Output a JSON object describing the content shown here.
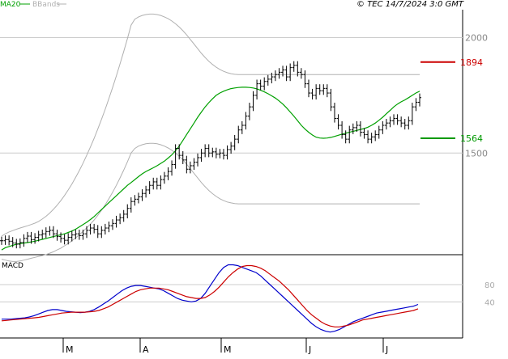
{
  "header": {
    "legend": [
      {
        "label": "MA20",
        "color": "#00a000"
      },
      {
        "label": "BBands",
        "color": "#b0b0b0"
      }
    ],
    "copyright": "© TEC 14/7/2024 3:0 GMT"
  },
  "colors": {
    "price_bars": "#000000",
    "ma20": "#00a000",
    "bbands": "#b0b0b0",
    "resistance": "#cc0000",
    "support": "#009900",
    "macd": "#0000cc",
    "signal": "#cc0000",
    "grid": "#cccccc"
  },
  "chart_data": [
    {
      "type": "bar",
      "subtype": "ohlc-price",
      "y_ticks": [
        {
          "value": 2000,
          "label": "2000"
        },
        {
          "value": 1500,
          "label": "1500"
        }
      ],
      "ylim": [
        1070,
        2100
      ],
      "months": [
        "M",
        "A",
        "M",
        "J",
        "J"
      ],
      "levels": [
        {
          "name": "resistance",
          "value": 1894,
          "label": "1894",
          "color": "#cc0000"
        },
        {
          "name": "support",
          "value": 1564,
          "label": "1564",
          "color": "#009900"
        }
      ],
      "series": [
        {
          "name": "price",
          "values": [
            1120,
            1125,
            1118,
            1110,
            1105,
            1112,
            1130,
            1140,
            1125,
            1135,
            1145,
            1150,
            1160,
            1165,
            1150,
            1138,
            1130,
            1122,
            1135,
            1145,
            1150,
            1142,
            1150,
            1165,
            1175,
            1170,
            1150,
            1165,
            1175,
            1185,
            1195,
            1210,
            1220,
            1235,
            1260,
            1290,
            1300,
            1310,
            1325,
            1340,
            1360,
            1375,
            1360,
            1385,
            1400,
            1420,
            1450,
            1520,
            1490,
            1470,
            1430,
            1445,
            1460,
            1480,
            1500,
            1520,
            1500,
            1505,
            1495,
            1500,
            1490,
            1515,
            1530,
            1560,
            1600,
            1620,
            1660,
            1700,
            1750,
            1800,
            1790,
            1810,
            1820,
            1830,
            1840,
            1850,
            1860,
            1830,
            1870,
            1880,
            1850,
            1840,
            1800,
            1760,
            1750,
            1780,
            1770,
            1780,
            1760,
            1700,
            1650,
            1620,
            1580,
            1560,
            1600,
            1610,
            1620,
            1590,
            1580,
            1560,
            1570,
            1580,
            1600,
            1620,
            1630,
            1640,
            1650,
            1640,
            1630,
            1620,
            1640,
            1700,
            1720,
            1740
          ]
        },
        {
          "name": "ma20",
          "values": [
            1080,
            1090,
            1095,
            1100,
            1105,
            1108,
            1110,
            1112,
            1115,
            1118,
            1122,
            1126,
            1130,
            1134,
            1138,
            1142,
            1146,
            1150,
            1156,
            1162,
            1170,
            1180,
            1190,
            1200,
            1212,
            1225,
            1240,
            1255,
            1270,
            1285,
            1300,
            1315,
            1330,
            1345,
            1360,
            1372,
            1385,
            1398,
            1410,
            1420,
            1428,
            1436,
            1445,
            1455,
            1465,
            1478,
            1492,
            1510,
            1530,
            1555,
            1580,
            1605,
            1630,
            1655,
            1678,
            1700,
            1718,
            1735,
            1750,
            1760,
            1768,
            1774,
            1779,
            1782,
            1784,
            1785,
            1785,
            1784,
            1782,
            1778,
            1772,
            1765,
            1757,
            1748,
            1738,
            1726,
            1712,
            1696,
            1678,
            1660,
            1640,
            1620,
            1604,
            1590,
            1578,
            1569,
            1565,
            1564,
            1565,
            1568,
            1572,
            1577,
            1582,
            1586,
            1590,
            1594,
            1598,
            1602,
            1606,
            1612,
            1620,
            1630,
            1642,
            1655,
            1670,
            1685,
            1700,
            1712,
            1722,
            1730,
            1740,
            1750,
            1760,
            1768
          ]
        },
        {
          "name": "bb_upper",
          "values": [
            1140,
            1150,
            1158,
            1164,
            1170,
            1175,
            1180,
            1185,
            1190,
            1196,
            1204,
            1214,
            1226,
            1240,
            1256,
            1274,
            1294,
            1316,
            1340,
            1366,
            1394,
            1424,
            1456,
            1490,
            1526,
            1564,
            1604,
            1646,
            1690,
            1736,
            1784,
            1834,
            1886,
            1940,
            1996,
            2054,
            2080,
            2090,
            2096,
            2100,
            2102,
            2102,
            2100,
            2096,
            2090,
            2082,
            2072,
            2060,
            2046,
            2030,
            2012,
            1992,
            1972,
            1952,
            1932,
            1914,
            1898,
            1884,
            1872,
            1862,
            1854,
            1848,
            1844,
            1841,
            1840,
            1840,
            1840,
            1840,
            1840,
            1840,
            1840,
            1840,
            1840,
            1840,
            1840,
            1840,
            1840,
            1840,
            1840,
            1840,
            1840,
            1840,
            1840,
            1840,
            1840,
            1840,
            1840,
            1840,
            1840,
            1840,
            1840,
            1840,
            1840,
            1840,
            1840,
            1840,
            1840,
            1840,
            1840,
            1840,
            1840,
            1840,
            1840,
            1840,
            1840,
            1840,
            1840,
            1840,
            1840,
            1840,
            1840,
            1840,
            1840,
            1840
          ]
        },
        {
          "name": "bb_lower",
          "values": [
            1040,
            1036,
            1032,
            1030,
            1030,
            1032,
            1036,
            1040,
            1044,
            1048,
            1052,
            1056,
            1060,
            1066,
            1072,
            1080,
            1088,
            1098,
            1108,
            1120,
            1132,
            1146,
            1160,
            1176,
            1192,
            1210,
            1230,
            1252,
            1276,
            1302,
            1330,
            1360,
            1392,
            1426,
            1462,
            1500,
            1520,
            1530,
            1536,
            1540,
            1542,
            1542,
            1540,
            1536,
            1530,
            1522,
            1512,
            1500,
            1486,
            1470,
            1452,
            1432,
            1412,
            1392,
            1372,
            1354,
            1338,
            1324,
            1312,
            1302,
            1294,
            1288,
            1284,
            1281,
            1280,
            1280,
            1280,
            1280,
            1280,
            1280,
            1280,
            1280,
            1280,
            1280,
            1280,
            1280,
            1280,
            1280,
            1280,
            1280,
            1280,
            1280,
            1280,
            1280,
            1280,
            1280,
            1280,
            1280,
            1280,
            1280,
            1280,
            1280,
            1280,
            1280,
            1280,
            1280,
            1280,
            1280,
            1280,
            1280,
            1280,
            1280,
            1280,
            1280,
            1280,
            1280,
            1280,
            1280,
            1280,
            1280,
            1280,
            1280,
            1280,
            1280
          ]
        }
      ]
    },
    {
      "type": "line",
      "title": "MACD",
      "y_ticks": [
        {
          "value": 80,
          "label": "80"
        },
        {
          "value": 40,
          "label": "40"
        }
      ],
      "ylim": [
        -40,
        140
      ],
      "series": [
        {
          "name": "macd",
          "values": [
            0,
            0,
            0,
            1,
            2,
            3,
            5,
            8,
            12,
            16,
            20,
            22,
            22,
            20,
            18,
            17,
            16,
            15,
            16,
            18,
            22,
            28,
            35,
            42,
            50,
            58,
            66,
            72,
            76,
            78,
            78,
            76,
            74,
            72,
            70,
            66,
            60,
            54,
            48,
            44,
            42,
            40,
            42,
            48,
            60,
            76,
            92,
            108,
            120,
            126,
            126,
            124,
            120,
            116,
            112,
            108,
            100,
            90,
            80,
            70,
            60,
            50,
            40,
            30,
            20,
            10,
            0,
            -10,
            -18,
            -24,
            -28,
            -30,
            -28,
            -24,
            -18,
            -12,
            -6,
            -2,
            2,
            6,
            10,
            14,
            16,
            18,
            20,
            22,
            24,
            26,
            28,
            30,
            34
          ]
        },
        {
          "name": "signal",
          "values": [
            -4,
            -3,
            -2,
            -1,
            0,
            1,
            2,
            3,
            4,
            6,
            8,
            10,
            12,
            14,
            15,
            16,
            16,
            16,
            16,
            17,
            18,
            20,
            24,
            28,
            34,
            40,
            46,
            52,
            58,
            64,
            68,
            70,
            72,
            72,
            72,
            70,
            68,
            64,
            60,
            56,
            52,
            50,
            48,
            48,
            50,
            56,
            64,
            74,
            86,
            98,
            108,
            116,
            122,
            124,
            124,
            122,
            118,
            112,
            104,
            96,
            88,
            78,
            68,
            56,
            44,
            32,
            20,
            10,
            2,
            -6,
            -12,
            -16,
            -18,
            -18,
            -16,
            -14,
            -10,
            -6,
            -2,
            0,
            2,
            4,
            6,
            8,
            10,
            12,
            14,
            16,
            18,
            20,
            24
          ]
        }
      ]
    }
  ]
}
